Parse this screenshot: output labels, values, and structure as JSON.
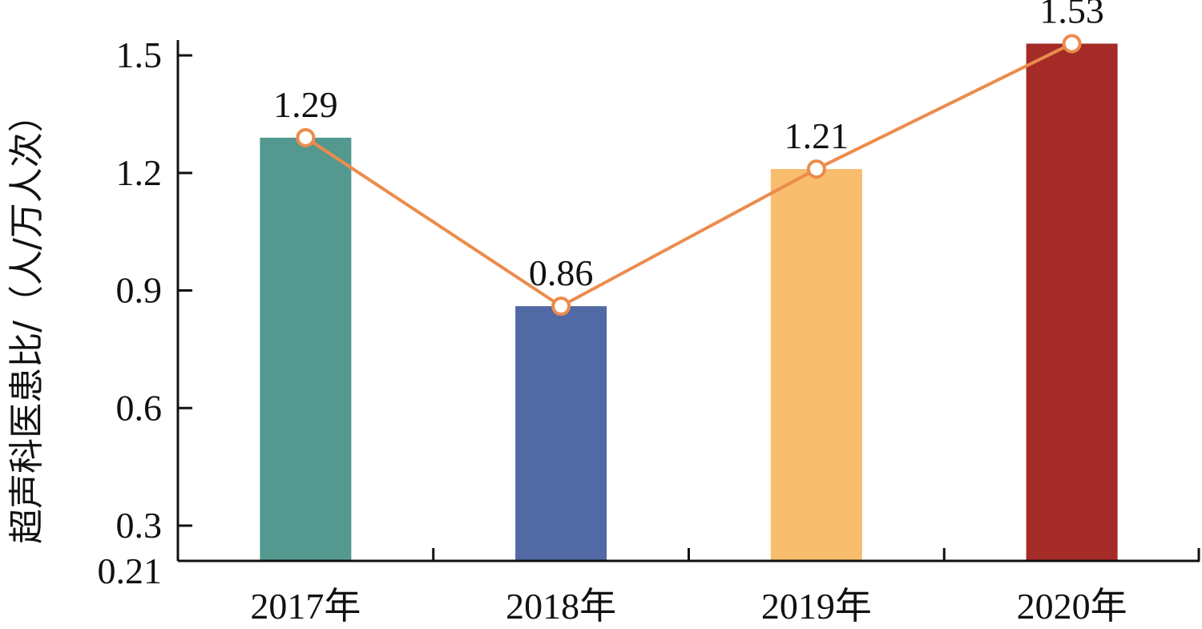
{
  "chart_data": {
    "type": "bar",
    "categories": [
      "2017年",
      "2018年",
      "2019年",
      "2020年"
    ],
    "values": [
      1.29,
      0.86,
      1.21,
      1.53
    ],
    "bar_colors": [
      "#54998f",
      "#5169a4",
      "#f8bd6d",
      "#a42b27"
    ],
    "line_color": "#ec8c4c",
    "overlay": "line",
    "ylabel": "超声科医患比/（人/万人次）",
    "ylim": [
      0.21,
      1.58
    ],
    "yticks": [
      0.21,
      0.3,
      0.6,
      0.9,
      1.2,
      1.5
    ],
    "ytick_labels": [
      "0.21",
      "0.3",
      "0.6",
      "0.9",
      "1.2",
      "1.5"
    ],
    "data_labels": [
      "1.29",
      "0.86",
      "1.21",
      "1.53"
    ],
    "grid": false,
    "legend": "none"
  }
}
